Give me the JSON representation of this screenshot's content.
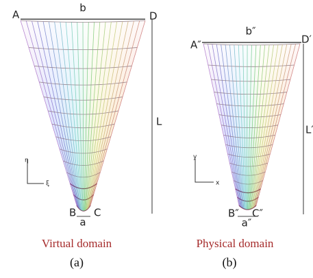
{
  "panels": [
    {
      "top_left": "A",
      "top": "b",
      "top_right": "D",
      "height": "L",
      "bottom_left": "B",
      "bottom": "a",
      "bottom_right": "C",
      "axis_vertical": "η",
      "axis_horizontal": "ξ",
      "caption": "Virtual domain",
      "sublabel": "(a)"
    },
    {
      "top_left": "A″",
      "top": "b″",
      "top_right": "D′",
      "height": "L′",
      "bottom_left": "B″",
      "bottom": "a″",
      "bottom_right": "C″",
      "axis_vertical": "y",
      "axis_horizontal": "x",
      "caption": "Physical domain",
      "sublabel": "(b)"
    }
  ]
}
